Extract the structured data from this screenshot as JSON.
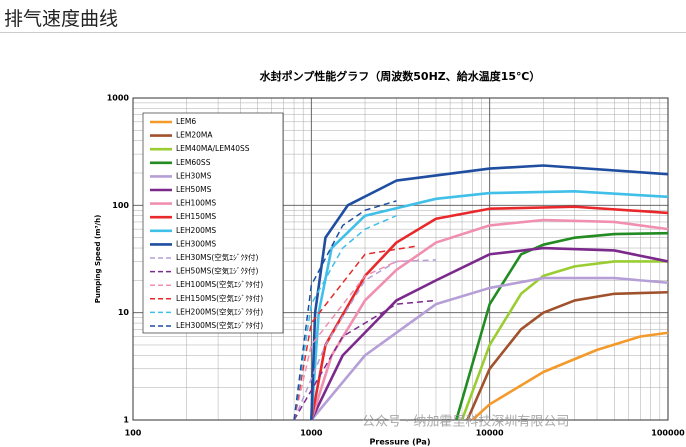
{
  "header": {
    "title": "排气速度曲线"
  },
  "watermark": "公众号 · 纳加霍里科技深圳有限公司",
  "chart_data": {
    "type": "line",
    "title": "水封ポンプ性能グラフ（周波数50HZ、給水温度15℃）",
    "x_label": "Pressure (Pa)",
    "y_label": "Pumping Speed (m³/h)",
    "xlim": [
      100,
      100000
    ],
    "ylim": [
      1,
      1000
    ],
    "xticks": [
      100,
      1000,
      10000,
      100000
    ],
    "yticks": [
      1,
      10,
      100,
      1000
    ],
    "log": true,
    "grid": true,
    "series": [
      {
        "name": "LEM6",
        "color": "#f39a2b",
        "dash": false,
        "x": [
          8000,
          10000,
          20000,
          40000,
          70000,
          100000
        ],
        "values": [
          1,
          1.4,
          2.8,
          4.5,
          6,
          6.5
        ]
      },
      {
        "name": "LEM20MA",
        "color": "#a0522d",
        "dash": false,
        "x": [
          7500,
          10000,
          15000,
          20000,
          30000,
          50000,
          100000
        ],
        "values": [
          1,
          3,
          7,
          10,
          13,
          15,
          15.5
        ]
      },
      {
        "name": "LEM40MA/LEM40SS",
        "color": "#9acd32",
        "dash": false,
        "x": [
          7000,
          10000,
          15000,
          20000,
          30000,
          50000,
          100000
        ],
        "values": [
          1,
          5,
          15,
          22,
          27,
          30,
          30
        ]
      },
      {
        "name": "LEM60SS",
        "color": "#228b22",
        "dash": false,
        "x": [
          6500,
          10000,
          15000,
          20000,
          30000,
          50000,
          100000
        ],
        "values": [
          1,
          12,
          35,
          43,
          50,
          54,
          55
        ]
      },
      {
        "name": "LEH30MS",
        "color": "#b59fd6",
        "dash": false,
        "x": [
          1000,
          2000,
          5000,
          10000,
          20000,
          50000,
          100000
        ],
        "values": [
          1,
          4,
          12,
          17,
          21,
          21,
          19
        ]
      },
      {
        "name": "LEH50MS",
        "color": "#7b2a8c",
        "dash": false,
        "x": [
          1000,
          1500,
          3000,
          5000,
          10000,
          20000,
          50000,
          100000
        ],
        "values": [
          1,
          4,
          13,
          20,
          35,
          40,
          38,
          30
        ]
      },
      {
        "name": "LEH100MS",
        "color": "#f08fb0",
        "dash": false,
        "x": [
          1000,
          1300,
          2000,
          3000,
          5000,
          10000,
          20000,
          50000,
          100000
        ],
        "values": [
          1,
          4,
          13,
          25,
          45,
          65,
          73,
          70,
          60
        ]
      },
      {
        "name": "LEH150MS",
        "color": "#e8282b",
        "dash": false,
        "x": [
          1000,
          1200,
          2000,
          3000,
          5000,
          10000,
          30000,
          100000
        ],
        "values": [
          1,
          5,
          22,
          45,
          75,
          93,
          97,
          85
        ]
      },
      {
        "name": "LEH200MS",
        "color": "#40bfe8",
        "dash": false,
        "x": [
          1000,
          1100,
          1300,
          2000,
          5000,
          10000,
          30000,
          100000
        ],
        "values": [
          1,
          10,
          40,
          80,
          115,
          130,
          135,
          120
        ]
      },
      {
        "name": "LEH300MS",
        "color": "#1f4ea1",
        "dash": false,
        "x": [
          1000,
          1050,
          1200,
          1600,
          3000,
          10000,
          20000,
          100000
        ],
        "values": [
          1,
          10,
          50,
          100,
          170,
          220,
          235,
          195
        ]
      },
      {
        "name": "LEH30MS(空気ｴｼﾞｸﾀ付)",
        "color": "#b59fd6",
        "dash": true,
        "x": [
          800,
          1200,
          2000,
          3000,
          5000
        ],
        "values": [
          1,
          5,
          20,
          30,
          31
        ]
      },
      {
        "name": "LEH50MS(空気ｴｼﾞｸﾀ付)",
        "color": "#7b2a8c",
        "dash": true,
        "x": [
          800,
          1500,
          3000,
          5000
        ],
        "values": [
          1,
          6,
          12,
          13
        ]
      },
      {
        "name": "LEH100MS(空気ｴｼﾞｸﾀ付)",
        "color": "#f08fb0",
        "dash": true,
        "x": [
          800,
          1000,
          2000,
          3000,
          4000
        ],
        "values": [
          1,
          5,
          22,
          30,
          31
        ]
      },
      {
        "name": "LEH150MS(空気ｴｼﾞｸﾀ付)",
        "color": "#e8282b",
        "dash": true,
        "x": [
          800,
          1000,
          2000,
          4000
        ],
        "values": [
          1,
          8,
          35,
          42
        ]
      },
      {
        "name": "LEH200MS(空気ｴｼﾞｸﾀ付)",
        "color": "#40bfe8",
        "dash": true,
        "x": [
          800,
          1000,
          1500,
          2000,
          3000
        ],
        "values": [
          1,
          12,
          40,
          60,
          80
        ]
      },
      {
        "name": "LEH300MS(空気ｴｼﾞｸﾀ付)",
        "color": "#1f4ea1",
        "dash": true,
        "x": [
          800,
          1000,
          1500,
          2000,
          3000
        ],
        "values": [
          1,
          18,
          65,
          90,
          110
        ]
      }
    ]
  }
}
